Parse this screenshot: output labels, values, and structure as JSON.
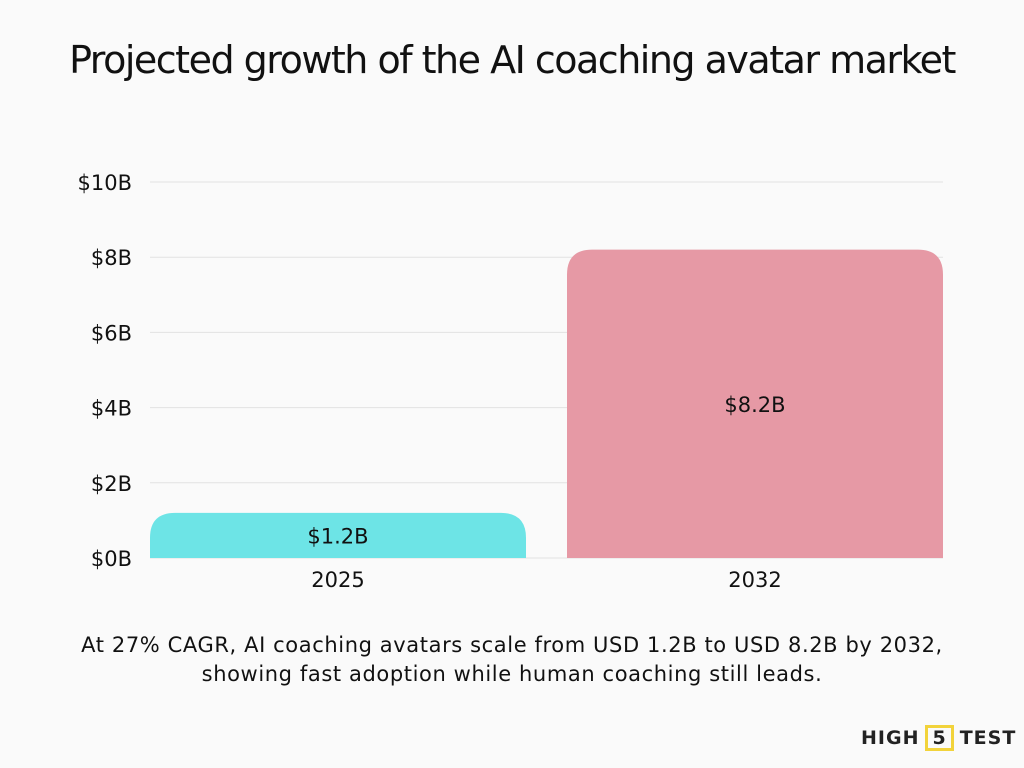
{
  "chart_data": {
    "type": "bar",
    "title": "Projected growth of the AI coaching avatar market",
    "categories": [
      "2025",
      "2032"
    ],
    "values": [
      1.2,
      8.2
    ],
    "data_labels": [
      "$1.2B",
      "$8.2B"
    ],
    "colors": [
      "#6de4e6",
      "#e699a5"
    ],
    "ylim": [
      0,
      10
    ],
    "yticks": [
      0,
      2,
      4,
      6,
      8,
      10
    ],
    "ytick_labels": [
      "$0B",
      "$2B",
      "$4B",
      "$6B",
      "$8B",
      "$10B"
    ],
    "grid": true,
    "xlabel": "",
    "ylabel": ""
  },
  "caption": "At 27% CAGR, AI coaching avatars scale from USD 1.2B to USD 8.2B by 2032, showing fast adoption while human coaching still leads.",
  "logo": {
    "left": "HIGH",
    "mid": "5",
    "right": "TEST",
    "accent": "#f2d33b"
  }
}
